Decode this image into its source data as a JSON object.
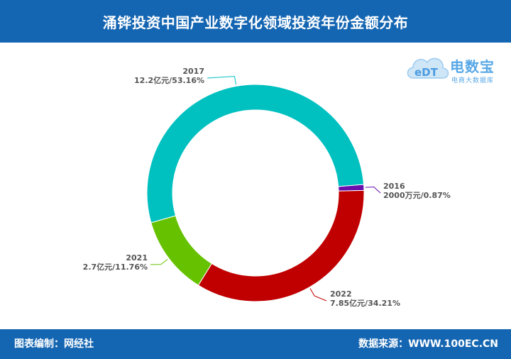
{
  "header": {
    "title": "涌铧投资中国产业数字化领域投资年份金额分布"
  },
  "logo": {
    "brand": "电数宝",
    "sub": "电商大数据库",
    "mark": "eDT"
  },
  "footer": {
    "left": "图表编制：网经社",
    "right": "数据来源：WWW.100EC.CN"
  },
  "chart_data": {
    "type": "pie",
    "donut": true,
    "title": "涌铧投资中国产业数字化领域投资年份金额分布",
    "slices": [
      {
        "name": "2016",
        "value_label": "2000万元",
        "percent": 0.87,
        "percent_label": "0.87%",
        "color": "#6a0dad"
      },
      {
        "name": "2022",
        "value_label": "7.85亿元",
        "percent": 34.21,
        "percent_label": "34.21%",
        "color": "#c00000"
      },
      {
        "name": "2021",
        "value_label": "2.7亿元",
        "percent": 11.76,
        "percent_label": "11.76%",
        "color": "#66c200"
      },
      {
        "name": "2017",
        "value_label": "12.2亿元",
        "percent": 53.16,
        "percent_label": "53.16%",
        "color": "#00c0c0"
      }
    ]
  }
}
